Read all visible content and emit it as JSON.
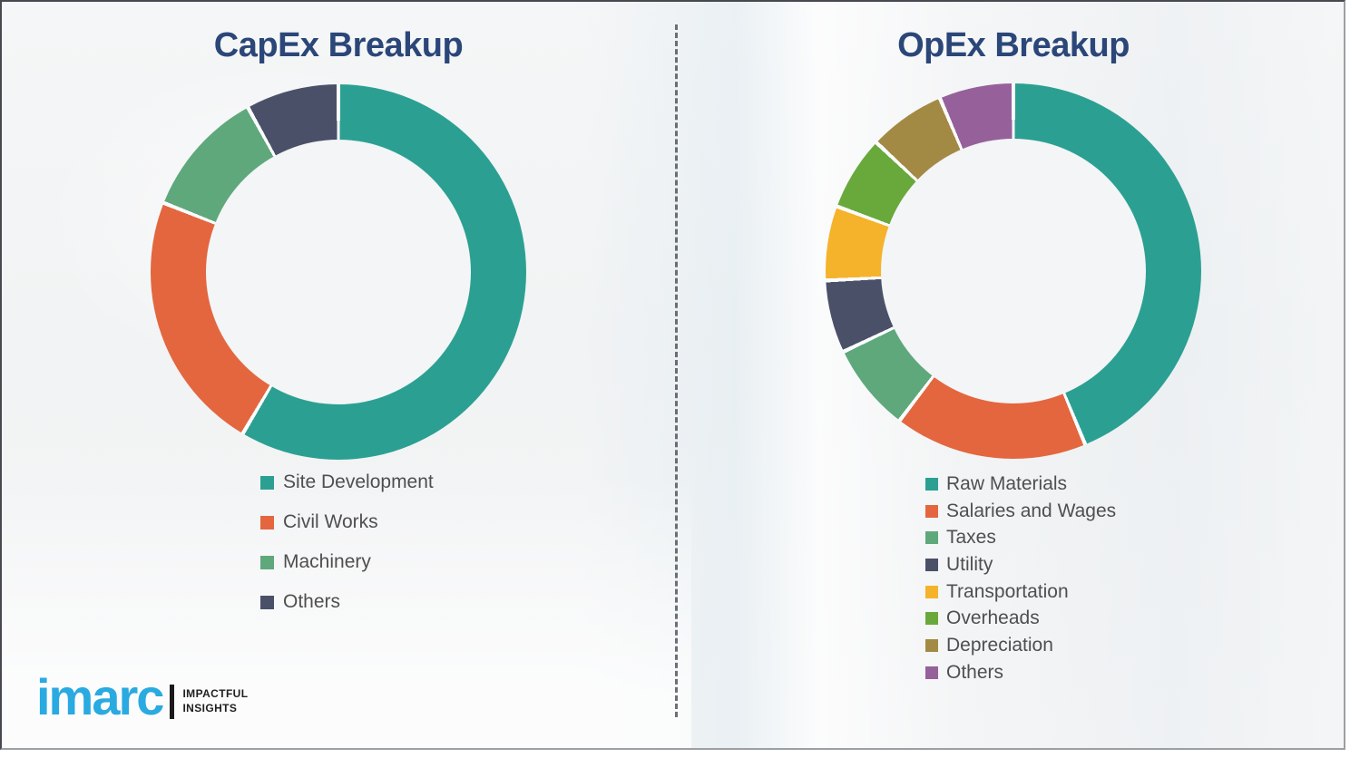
{
  "page": {
    "background_color": "#f3f5f6",
    "border_color": "#8b9096",
    "title_color": "#2b4678",
    "legend_text_color": "#4f4f4f",
    "divider_color": "#54585e"
  },
  "logo": {
    "brand": "imarc",
    "brand_color": "#29aae1",
    "tagline": [
      "IMPACTFUL",
      "INSIGHTS"
    ]
  },
  "chart_data": [
    {
      "type": "pie",
      "subtype": "donut",
      "title": "CapEx Breakup",
      "legend_position": "below-chart-left",
      "start_angle_deg": 0,
      "direction": "clockwise",
      "segments": [
        {
          "label": "Site Development",
          "value": 58.5,
          "color": "#2ba092"
        },
        {
          "label": "Civil Works",
          "value": 22.5,
          "color": "#e4663f"
        },
        {
          "label": "Machinery",
          "value": 11.0,
          "color": "#5fa87c"
        },
        {
          "label": "Others",
          "value": 8.0,
          "color": "#4b5069"
        }
      ]
    },
    {
      "type": "pie",
      "subtype": "donut",
      "title": "OpEx Breakup",
      "legend_position": "below-chart-left",
      "start_angle_deg": 0,
      "direction": "clockwise",
      "segments": [
        {
          "label": "Raw Materials",
          "value": 43.75,
          "color": "#2ba092"
        },
        {
          "label": "Salaries and Wages",
          "value": 16.6,
          "color": "#e4663f"
        },
        {
          "label": "Taxes",
          "value": 7.6,
          "color": "#5fa87c"
        },
        {
          "label": "Utility",
          "value": 6.25,
          "color": "#4b5069"
        },
        {
          "label": "Transportation",
          "value": 6.4,
          "color": "#f5b32b"
        },
        {
          "label": "Overheads",
          "value": 6.4,
          "color": "#69a93c"
        },
        {
          "label": "Depreciation",
          "value": 6.6,
          "color": "#a38a44"
        },
        {
          "label": "Others",
          "value": 6.4,
          "color": "#96619b"
        }
      ]
    }
  ]
}
